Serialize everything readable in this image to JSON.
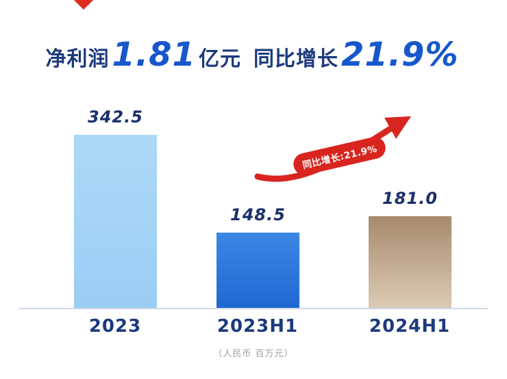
{
  "header": {
    "prefix": "净利润",
    "big_value": "1.81",
    "unit": "亿元",
    "growth_label": "同比增长",
    "growth_value": "21.9%"
  },
  "chart_data": {
    "type": "bar",
    "title": "净利润 1.81 亿元 同比增长 21.9%",
    "categories": [
      "2023",
      "2023H1",
      "2024H1"
    ],
    "values": [
      342.5,
      148.5,
      181.0
    ],
    "value_labels": [
      "342.5",
      "148.5",
      "181.0"
    ],
    "ylim": [
      0,
      360
    ],
    "grid": false,
    "legend_position": "none",
    "unit_note": "（人民币 百万元）",
    "annotation": {
      "label": "同比增长:21.9%"
    },
    "bar_colors": [
      {
        "top": "#add9f8",
        "bottom": "#9bcdf4"
      },
      {
        "top": "#3b87e4",
        "bottom": "#2068d1"
      },
      {
        "top": "#a78a6c",
        "bottom": "#dccab4"
      }
    ],
    "accent_red": "#d9251f",
    "label_color": "#1b2f6b",
    "axis_label_color": "#1c3a7c"
  }
}
